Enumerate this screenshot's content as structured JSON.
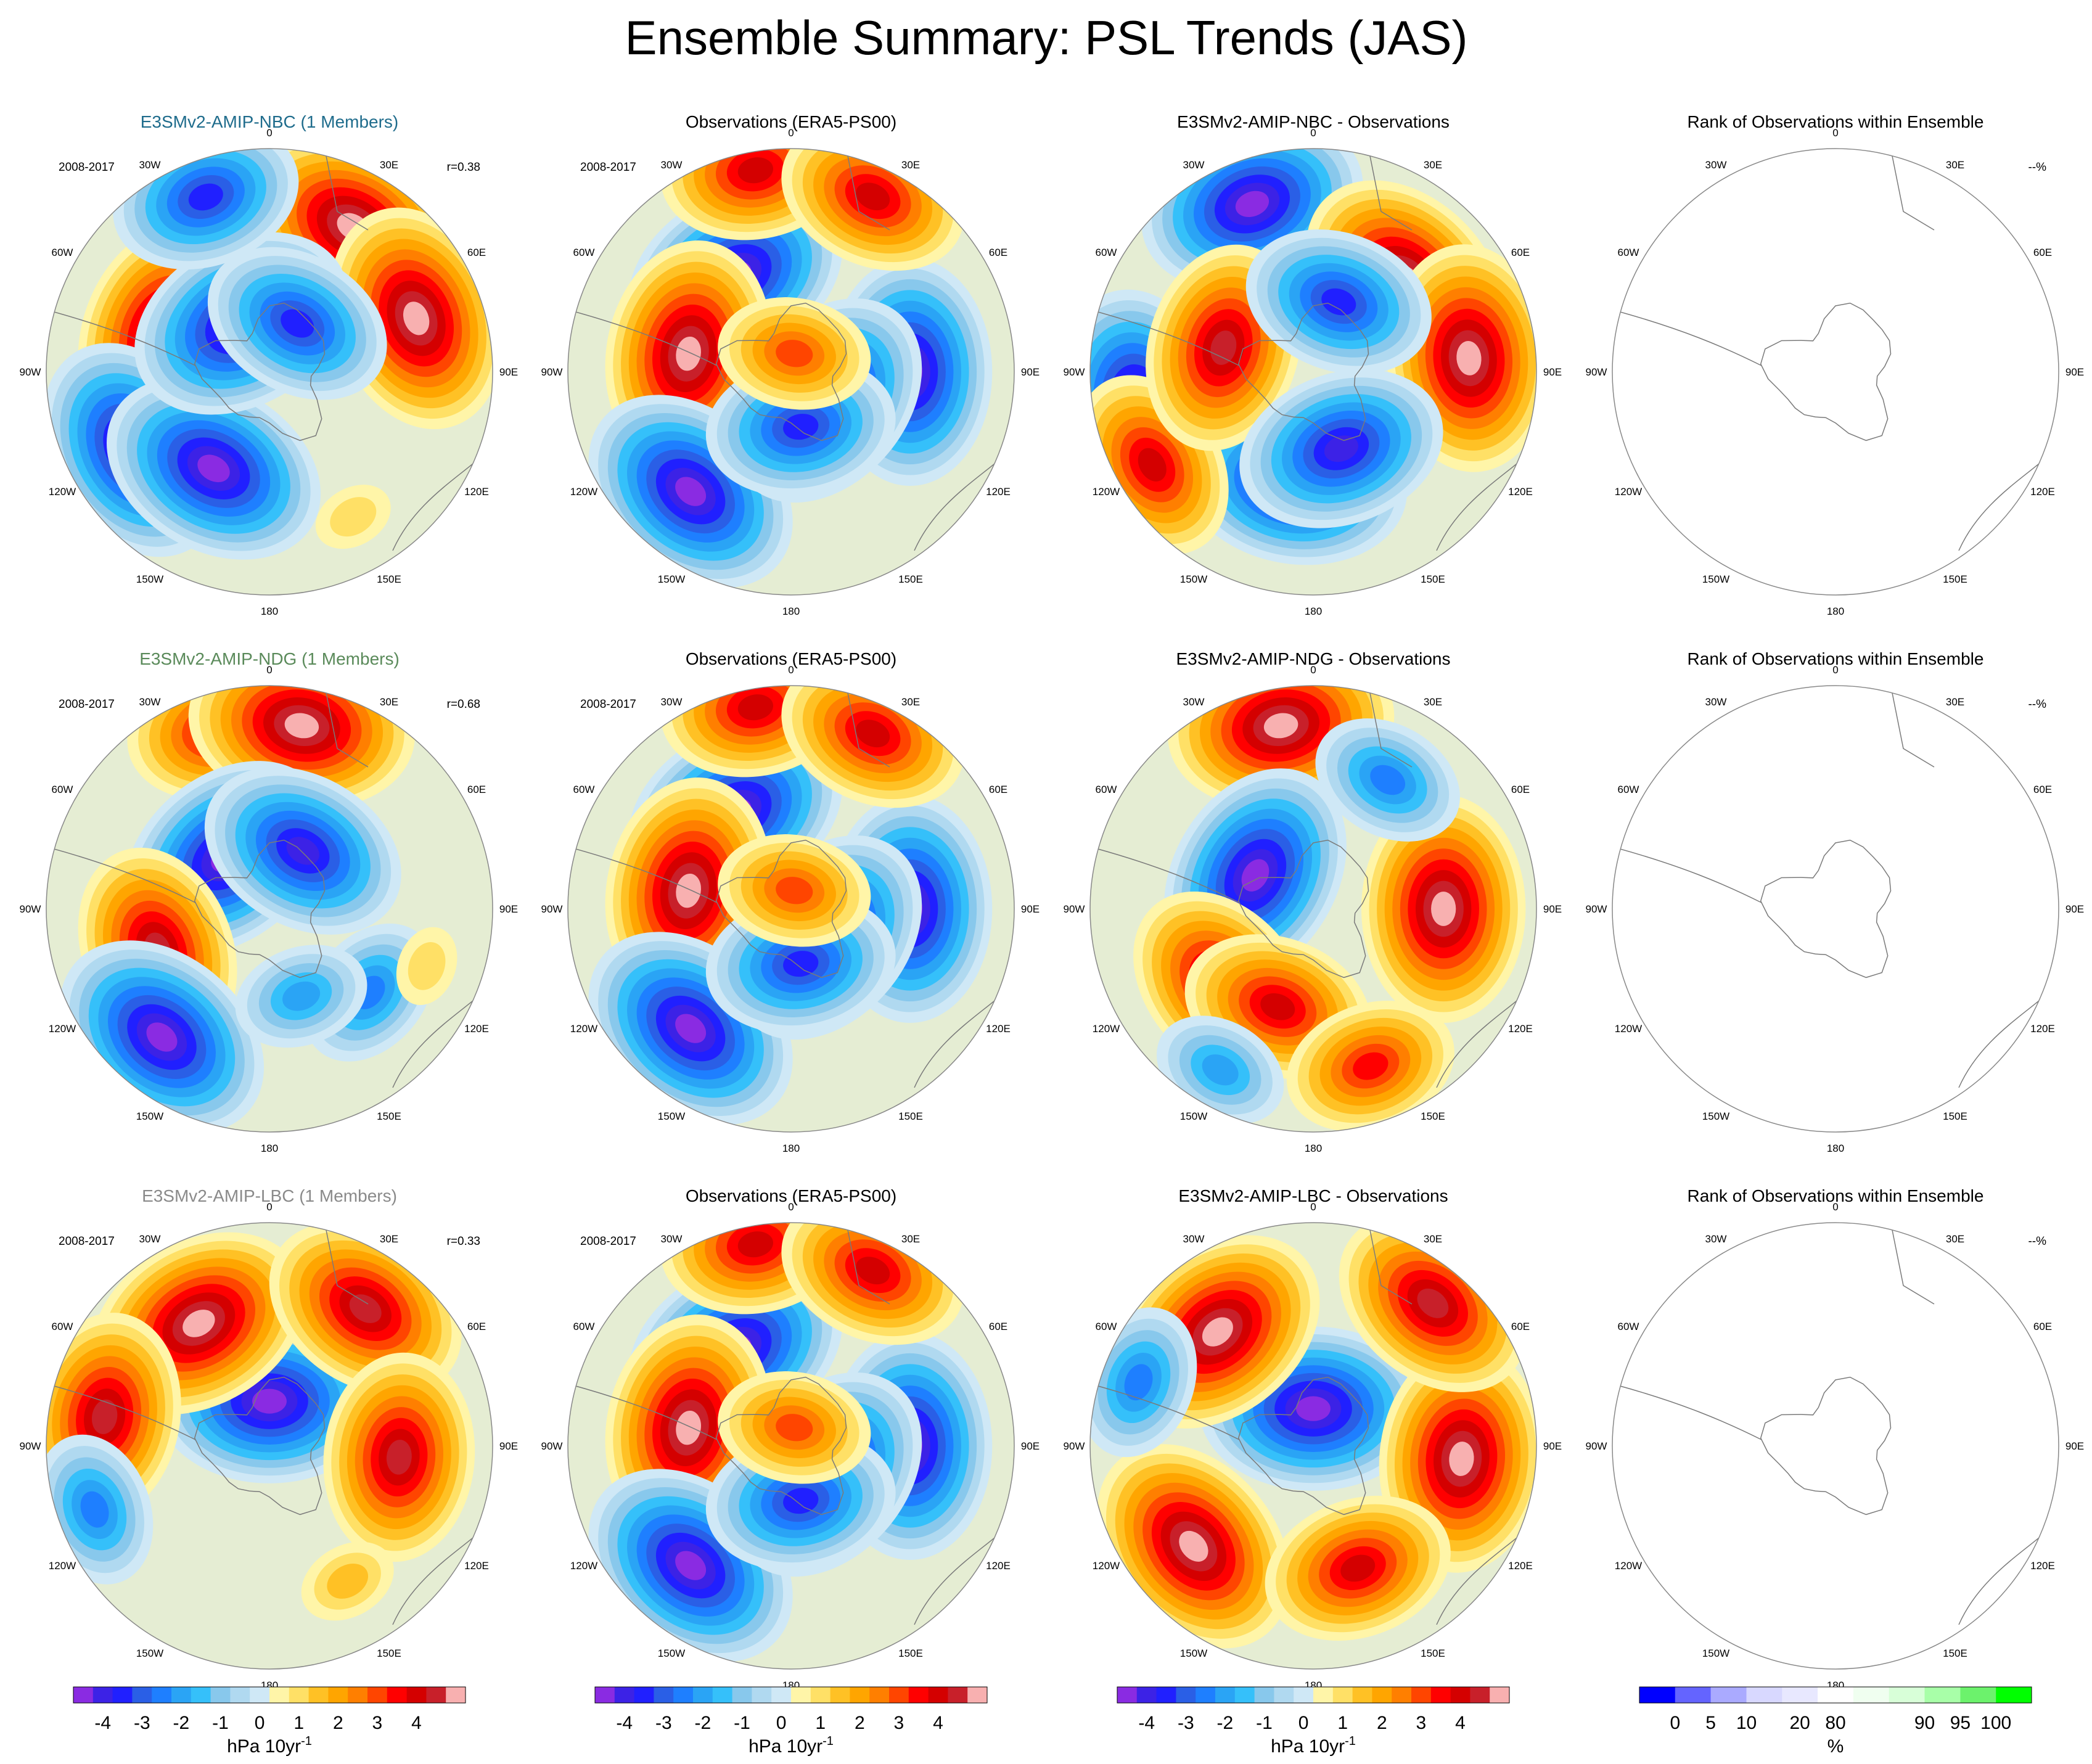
{
  "figure": {
    "title": "Ensemble Summary: PSL Trends (JAS)",
    "period_label": "2008-2017",
    "rank_pct_label": "--%",
    "lon_labels": [
      "0",
      "30E",
      "60E",
      "90E",
      "120E",
      "150E",
      "180",
      "150W",
      "120W",
      "90W",
      "60W",
      "30W"
    ]
  },
  "colors": {
    "trend_levels": [
      "#8a2be2",
      "#3c22e6",
      "#2020ff",
      "#2a5fe6",
      "#1e7fff",
      "#2aa4f5",
      "#35c0fa",
      "#88c8ec",
      "#b0d9f0",
      "#cfe8f6",
      "#fff5a8",
      "#ffe066",
      "#ffc125",
      "#ffa500",
      "#ff7f00",
      "#ff4500",
      "#ff0000",
      "#d40000",
      "#c8202a",
      "#f8b0b0"
    ],
    "rank_levels": [
      "#0000ff",
      "#6464ff",
      "#aaaaff",
      "#d8d8ff",
      "#e8e8ff",
      "#ffffff",
      "#f0fff0",
      "#d8ffd8",
      "#a8ffa8",
      "#6cf26c",
      "#00ff00"
    ],
    "model_title_colors": [
      "#1f6c8c",
      "#5a8a5a",
      "#8a8a8a"
    ]
  },
  "chart_data": [
    {
      "type": "heatmap",
      "row": 1,
      "col": 1,
      "title": "E3SMv2-AMIP-NBC (1 Members)",
      "subtitle_left": "2008-2017",
      "subtitle_right": "r=0.38",
      "units": "hPa 10yr-1",
      "features": [
        {
          "lon": -70,
          "lat": -60,
          "value": 4.5
        },
        {
          "lon": -120,
          "lat": -48,
          "value": -4.5
        },
        {
          "lon": -150,
          "lat": -60,
          "value": -4.5
        },
        {
          "lon": 30,
          "lat": -45,
          "value": 4.5
        },
        {
          "lon": 70,
          "lat": -48,
          "value": 4.5
        },
        {
          "lon": -30,
          "lat": -75,
          "value": -4.5
        },
        {
          "lon": 30,
          "lat": -75,
          "value": -3.5
        },
        {
          "lon": -20,
          "lat": -40,
          "value": -3.5
        },
        {
          "lon": 150,
          "lat": -45,
          "value": 0.5
        }
      ]
    },
    {
      "type": "heatmap",
      "row": 1,
      "col": 2,
      "title": "Observations (ERA5-PS00)",
      "subtitle_left": "2008-2017",
      "subtitle_right": "",
      "units": "hPa 10yr-1",
      "features": [
        {
          "lon": -30,
          "lat": -60,
          "value": -4.5
        },
        {
          "lon": -80,
          "lat": -62,
          "value": 4.5
        },
        {
          "lon": -140,
          "lat": -48,
          "value": -4.5
        },
        {
          "lon": 90,
          "lat": -58,
          "value": -4.5
        },
        {
          "lon": -10,
          "lat": -35,
          "value": 3.5
        },
        {
          "lon": 25,
          "lat": -38,
          "value": 3.5
        },
        {
          "lon": 130,
          "lat": -78,
          "value": -4.5
        },
        {
          "lon": 170,
          "lat": -75,
          "value": -3.5
        },
        {
          "lon": 10,
          "lat": -85,
          "value": 2.5
        }
      ]
    },
    {
      "type": "heatmap",
      "row": 1,
      "col": 3,
      "title": "E3SMv2-AMIP-NBC - Observations",
      "subtitle_left": "",
      "subtitle_right": "",
      "units": "hPa 10yr-1",
      "features": [
        {
          "lon": -20,
          "lat": -42,
          "value": -4.5
        },
        {
          "lon": 45,
          "lat": -55,
          "value": 4.5
        },
        {
          "lon": 85,
          "lat": -48,
          "value": 4.5
        },
        {
          "lon": -100,
          "lat": -42,
          "value": -4.5
        },
        {
          "lon": -170,
          "lat": -60,
          "value": -4.5
        },
        {
          "lon": -120,
          "lat": -40,
          "value": 3.5
        },
        {
          "lon": -75,
          "lat": -65,
          "value": 4.0
        },
        {
          "lon": 160,
          "lat": -68,
          "value": -4.0
        },
        {
          "lon": 20,
          "lat": -70,
          "value": -3.5
        }
      ]
    },
    {
      "type": "heatmap",
      "row": 1,
      "col": 4,
      "title": "Rank of Observations within Ensemble",
      "subtitle_left": "",
      "subtitle_right": "--%",
      "units": "%",
      "features": []
    },
    {
      "type": "heatmap",
      "row": 2,
      "col": 1,
      "title": "E3SMv2-AMIP-NDG (1 Members)",
      "subtitle_left": "2008-2017",
      "subtitle_right": "r=0.68",
      "units": "hPa 10yr-1",
      "features": [
        {
          "lon": -15,
          "lat": -40,
          "value": 3.5
        },
        {
          "lon": 10,
          "lat": -40,
          "value": 4.5
        },
        {
          "lon": -40,
          "lat": -72,
          "value": -4.5
        },
        {
          "lon": 30,
          "lat": -72,
          "value": -4.0
        },
        {
          "lon": -110,
          "lat": -58,
          "value": 4.0
        },
        {
          "lon": -140,
          "lat": -45,
          "value": -4.5
        },
        {
          "lon": 130,
          "lat": -55,
          "value": -2.5
        },
        {
          "lon": 160,
          "lat": -65,
          "value": -2.0
        },
        {
          "lon": 110,
          "lat": -45,
          "value": 0.5
        }
      ]
    },
    {
      "type": "heatmap",
      "row": 2,
      "col": 2,
      "title": "Observations (ERA5-PS00)",
      "subtitle_left": "2008-2017",
      "subtitle_right": "",
      "units": "hPa 10yr-1",
      "features": [
        {
          "lon": -30,
          "lat": -60,
          "value": -4.5
        },
        {
          "lon": -80,
          "lat": -62,
          "value": 4.5
        },
        {
          "lon": -140,
          "lat": -48,
          "value": -4.5
        },
        {
          "lon": 90,
          "lat": -58,
          "value": -4.5
        },
        {
          "lon": -10,
          "lat": -35,
          "value": 3.5
        },
        {
          "lon": 25,
          "lat": -38,
          "value": 3.5
        },
        {
          "lon": 130,
          "lat": -78,
          "value": -4.5
        },
        {
          "lon": 170,
          "lat": -75,
          "value": -3.5
        },
        {
          "lon": 10,
          "lat": -85,
          "value": 2.5
        }
      ]
    },
    {
      "type": "heatmap",
      "row": 2,
      "col": 3,
      "title": "E3SMv2-AMIP-NDG - Observations",
      "subtitle_left": "",
      "subtitle_right": "",
      "units": "hPa 10yr-1",
      "features": [
        {
          "lon": -10,
          "lat": -40,
          "value": 4.5
        },
        {
          "lon": -60,
          "lat": -72,
          "value": -4.5
        },
        {
          "lon": 90,
          "lat": -55,
          "value": 4.5
        },
        {
          "lon": -130,
          "lat": -58,
          "value": 4.0
        },
        {
          "lon": -160,
          "lat": -62,
          "value": 3.5
        },
        {
          "lon": 30,
          "lat": -50,
          "value": -2.5
        },
        {
          "lon": 160,
          "lat": -45,
          "value": 3.0
        },
        {
          "lon": -150,
          "lat": -40,
          "value": -2.0
        }
      ]
    },
    {
      "type": "heatmap",
      "row": 2,
      "col": 4,
      "title": "Rank of Observations within Ensemble",
      "subtitle_left": "",
      "subtitle_right": "--%",
      "units": "%",
      "features": []
    },
    {
      "type": "heatmap",
      "row": 3,
      "col": 1,
      "title": "E3SMv2-AMIP-LBC (1 Members)",
      "subtitle_left": "2008-2017",
      "subtitle_right": "r=0.33",
      "units": "hPa 10yr-1",
      "features": [
        {
          "lon": 0,
          "lat": -78,
          "value": -4.5
        },
        {
          "lon": -30,
          "lat": -52,
          "value": 4.5
        },
        {
          "lon": 35,
          "lat": -45,
          "value": 4.0
        },
        {
          "lon": -80,
          "lat": -45,
          "value": 4.0
        },
        {
          "lon": 95,
          "lat": -55,
          "value": 4.0
        },
        {
          "lon": -110,
          "lat": -40,
          "value": -2.5
        },
        {
          "lon": 150,
          "lat": -48,
          "value": 1.0
        }
      ]
    },
    {
      "type": "heatmap",
      "row": 3,
      "col": 2,
      "title": "Observations (ERA5-PS00)",
      "subtitle_left": "2008-2017",
      "subtitle_right": "",
      "units": "hPa 10yr-1",
      "features": [
        {
          "lon": -30,
          "lat": -60,
          "value": -4.5
        },
        {
          "lon": -80,
          "lat": -62,
          "value": 4.5
        },
        {
          "lon": -140,
          "lat": -48,
          "value": -4.5
        },
        {
          "lon": 90,
          "lat": -58,
          "value": -4.5
        },
        {
          "lon": -10,
          "lat": -35,
          "value": 3.5
        },
        {
          "lon": 25,
          "lat": -38,
          "value": 3.5
        },
        {
          "lon": 130,
          "lat": -78,
          "value": -4.5
        },
        {
          "lon": 170,
          "lat": -75,
          "value": -3.5
        },
        {
          "lon": 10,
          "lat": -85,
          "value": 2.5
        }
      ]
    },
    {
      "type": "heatmap",
      "row": 3,
      "col": 3,
      "title": "E3SMv2-AMIP-LBC - Observations",
      "subtitle_left": "",
      "subtitle_right": "",
      "units": "hPa 10yr-1",
      "features": [
        {
          "lon": 0,
          "lat": -80,
          "value": -4.5
        },
        {
          "lon": -40,
          "lat": -50,
          "value": 4.5
        },
        {
          "lon": 95,
          "lat": -50,
          "value": 4.5
        },
        {
          "lon": -130,
          "lat": -48,
          "value": 4.5
        },
        {
          "lon": 40,
          "lat": -40,
          "value": 4.0
        },
        {
          "lon": -70,
          "lat": -40,
          "value": -2.5
        },
        {
          "lon": 160,
          "lat": -55,
          "value": 3.5
        }
      ]
    },
    {
      "type": "heatmap",
      "row": 3,
      "col": 4,
      "title": "Rank of Observations within Ensemble",
      "subtitle_left": "",
      "subtitle_right": "--%",
      "units": "%",
      "features": []
    }
  ],
  "colorbars": [
    {
      "label": "hPa 10yr",
      "label_sup": "-1",
      "ticks": [
        "-4",
        "-3",
        "-2",
        "-1",
        "0",
        "1",
        "2",
        "3",
        "4"
      ]
    },
    {
      "label": "hPa 10yr",
      "label_sup": "-1",
      "ticks": [
        "-4",
        "-3",
        "-2",
        "-1",
        "0",
        "1",
        "2",
        "3",
        "4"
      ]
    },
    {
      "label": "hPa 10yr",
      "label_sup": "-1",
      "ticks": [
        "-4",
        "-3",
        "-2",
        "-1",
        "0",
        "1",
        "2",
        "3",
        "4"
      ]
    },
    {
      "label": "%",
      "label_sup": "",
      "ticks": [
        "0",
        "5",
        "10",
        "20",
        "80",
        "90",
        "95",
        "100"
      ]
    }
  ]
}
